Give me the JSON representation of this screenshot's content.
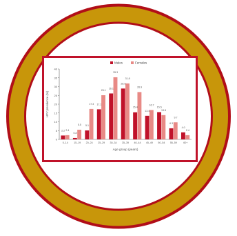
{
  "badge": {
    "ring_color": "#c8960a",
    "ring_edge_color": "#b10e18",
    "inner_fill": "#ffffff",
    "frame_color": "#c0122a"
  },
  "chart_data": {
    "type": "bar",
    "legend_position": "top-center",
    "grid": false,
    "xlabel": "Age group (years)",
    "ylabel": "HPV prevalence (%)",
    "ylim": [
      0,
      40
    ],
    "yticks": [
      0,
      5,
      10,
      15,
      20,
      25,
      30,
      35,
      40
    ],
    "categories": [
      "0–14",
      "15–19",
      "20–24",
      "25–29",
      "30–34",
      "35–39",
      "40–44",
      "45–49",
      "50–54",
      "55–59",
      "60+"
    ],
    "series": [
      {
        "name": "Males",
        "color": "#c0122a",
        "values": [
          2.2,
          0.8,
          5.1,
          17.1,
          26.1,
          28.9,
          15.4,
          13.4,
          15.5,
          6.3,
          4.0
        ],
        "labels": [
          "2.2",
          "0.8",
          "5.1",
          "17.1",
          "26.1",
          "28.9",
          "15.4",
          "13.4",
          "15.5",
          "6.3",
          "4.0"
        ]
      },
      {
        "name": "Females",
        "color": "#e88a86",
        "values": [
          2.4,
          5.5,
          17.3,
          25.1,
          35.3,
          31.8,
          26.9,
          16.7,
          13.8,
          9.7,
          2.4
        ],
        "labels": [
          "2.4",
          "5.5",
          "17.3",
          "25.1",
          "35.3",
          "31.8",
          "26.9",
          "16.7",
          "13.8",
          "9.7",
          "2.4"
        ]
      }
    ]
  }
}
